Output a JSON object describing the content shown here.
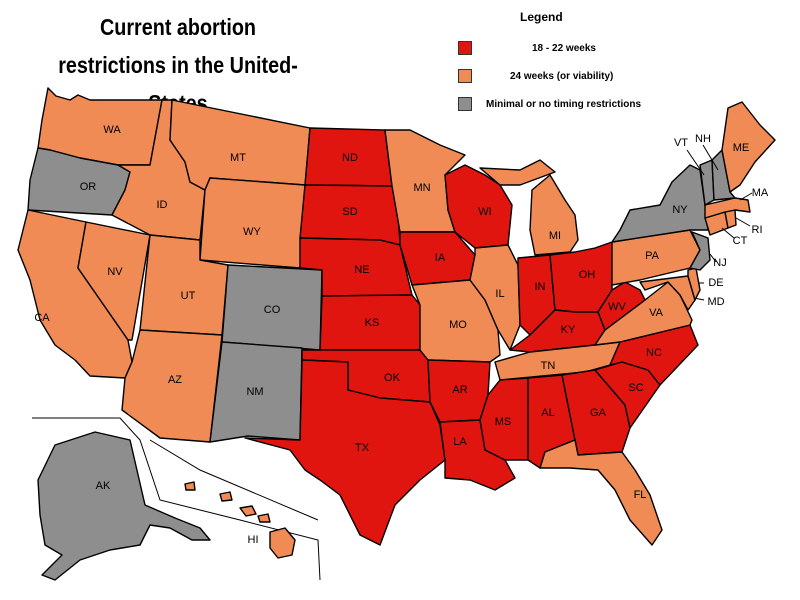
{
  "title_line1": "Current abortion",
  "title_line2": "restrictions in the United-States",
  "legend": {
    "title": "Legend",
    "items": [
      {
        "label": "18 - 22 weeks",
        "color": "#e0150f"
      },
      {
        "label": "24 weeks (or viability)",
        "color": "#f08b55"
      },
      {
        "label": "Minimal or no timing restrictions",
        "color": "#8e8e8e"
      }
    ]
  },
  "states": {
    "WA": {
      "label": "WA",
      "category": "orange"
    },
    "OR": {
      "label": "OR",
      "category": "gray"
    },
    "CA": {
      "label": "CA",
      "category": "orange"
    },
    "NV": {
      "label": "NV",
      "category": "orange"
    },
    "ID": {
      "label": "ID",
      "category": "orange"
    },
    "MT": {
      "label": "MT",
      "category": "orange"
    },
    "WY": {
      "label": "WY",
      "category": "orange"
    },
    "UT": {
      "label": "UT",
      "category": "orange"
    },
    "CO": {
      "label": "CO",
      "category": "gray"
    },
    "AZ": {
      "label": "AZ",
      "category": "orange"
    },
    "NM": {
      "label": "NM",
      "category": "gray"
    },
    "ND": {
      "label": "ND",
      "category": "red"
    },
    "SD": {
      "label": "SD",
      "category": "red"
    },
    "NE": {
      "label": "NE",
      "category": "red"
    },
    "KS": {
      "label": "KS",
      "category": "red"
    },
    "OK": {
      "label": "OK",
      "category": "red"
    },
    "TX": {
      "label": "TX",
      "category": "red"
    },
    "MN": {
      "label": "MN",
      "category": "orange"
    },
    "IA": {
      "label": "IA",
      "category": "red"
    },
    "MO": {
      "label": "MO",
      "category": "orange"
    },
    "AR": {
      "label": "AR",
      "category": "red"
    },
    "LA": {
      "label": "LA",
      "category": "red"
    },
    "WI": {
      "label": "WI",
      "category": "red"
    },
    "IL": {
      "label": "IL",
      "category": "orange"
    },
    "MI": {
      "label": "MI",
      "category": "orange"
    },
    "IN": {
      "label": "IN",
      "category": "red"
    },
    "OH": {
      "label": "OH",
      "category": "red"
    },
    "KY": {
      "label": "KY",
      "category": "red"
    },
    "TN": {
      "label": "TN",
      "category": "orange"
    },
    "MS": {
      "label": "MS",
      "category": "red"
    },
    "AL": {
      "label": "AL",
      "category": "red"
    },
    "GA": {
      "label": "GA",
      "category": "red"
    },
    "FL": {
      "label": "FL",
      "category": "orange"
    },
    "SC": {
      "label": "SC",
      "category": "red"
    },
    "NC": {
      "label": "NC",
      "category": "red"
    },
    "VA": {
      "label": "VA",
      "category": "orange"
    },
    "WV": {
      "label": "WV",
      "category": "red"
    },
    "PA": {
      "label": "PA",
      "category": "orange"
    },
    "NY": {
      "label": "NY",
      "category": "gray"
    },
    "VT": {
      "label": "VT",
      "category": "gray"
    },
    "NH": {
      "label": "NH",
      "category": "gray"
    },
    "ME": {
      "label": "ME",
      "category": "orange"
    },
    "MA": {
      "label": "MA",
      "category": "orange"
    },
    "RI": {
      "label": "RI",
      "category": "orange"
    },
    "CT": {
      "label": "CT",
      "category": "orange"
    },
    "NJ": {
      "label": "NJ",
      "category": "gray"
    },
    "DE": {
      "label": "DE",
      "category": "orange"
    },
    "MD": {
      "label": "MD",
      "category": "orange"
    },
    "AK": {
      "label": "AK",
      "category": "gray"
    },
    "HI": {
      "label": "HI",
      "category": "orange"
    }
  },
  "colors": {
    "red": "#e0150f",
    "orange": "#f08b55",
    "gray": "#8e8e8e"
  }
}
